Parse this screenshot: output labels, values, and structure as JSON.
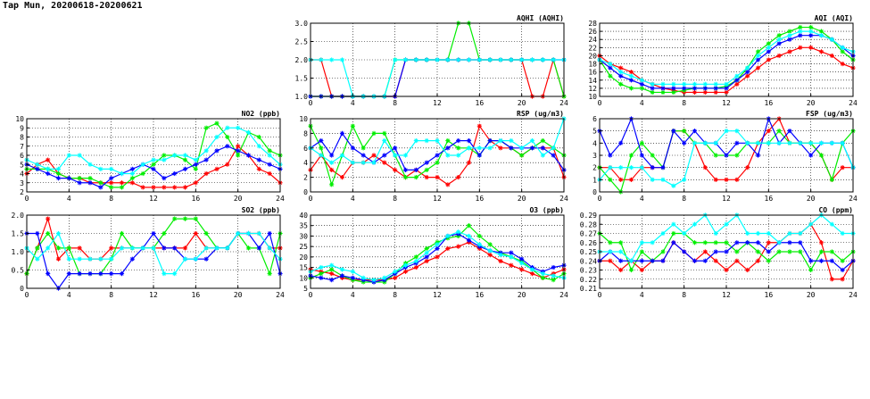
{
  "page": {
    "title": "Tap Mun, 20200618-20200621"
  },
  "series_colors": {
    "s1": "#ff0000",
    "s2": "#00ee00",
    "s3": "#0000ff",
    "s4": "#00ffff"
  },
  "chart_data": [
    {
      "id": "aqhi",
      "type": "line",
      "title": "AQHI (AQHI)",
      "xlim": [
        0,
        24
      ],
      "xticks": [
        0,
        4,
        8,
        12,
        16,
        20,
        24
      ],
      "ylim": [
        1.0,
        3.0
      ],
      "yticks": [
        "1.0",
        "1.5",
        "2.0",
        "2.5",
        "3.0"
      ],
      "grid": true,
      "series": [
        {
          "color": "#ff0000",
          "values": [
            2,
            2,
            1,
            1,
            1,
            1,
            1,
            1,
            1,
            2,
            2,
            2,
            2,
            2,
            2,
            2,
            2,
            2,
            2,
            2,
            2,
            1,
            1,
            2,
            1
          ]
        },
        {
          "color": "#00ee00",
          "values": [
            1,
            1,
            1,
            1,
            1,
            1,
            1,
            1,
            2,
            2,
            2,
            2,
            2,
            2,
            3,
            3,
            2,
            2,
            2,
            2,
            2,
            2,
            2,
            2,
            1
          ]
        },
        {
          "color": "#0000ff",
          "values": [
            1,
            1,
            1,
            1,
            1,
            1,
            1,
            1,
            1,
            2,
            2,
            2,
            2,
            2,
            2,
            2,
            2,
            2,
            2,
            2,
            2,
            2,
            2,
            2,
            2
          ]
        },
        {
          "color": "#00ffff",
          "values": [
            2,
            2,
            2,
            2,
            1,
            1,
            1,
            1,
            2,
            2,
            2,
            2,
            2,
            2,
            2,
            2,
            2,
            2,
            2,
            2,
            2,
            2,
            2,
            2,
            2
          ]
        }
      ]
    },
    {
      "id": "aqi",
      "type": "line",
      "title": "AQI (AQI)",
      "xlim": [
        0,
        24
      ],
      "xticks": [
        0,
        4,
        8,
        12,
        16,
        20,
        24
      ],
      "ylim": [
        10,
        28
      ],
      "yticks": [
        "10",
        "12",
        "14",
        "16",
        "18",
        "20",
        "22",
        "24",
        "26",
        "28"
      ],
      "grid": true,
      "series": [
        {
          "color": "#ff0000",
          "values": [
            20,
            18,
            17,
            16,
            14,
            13,
            12,
            11.5,
            11,
            11,
            11,
            11,
            11,
            13,
            15,
            17,
            19,
            20,
            21,
            22,
            22,
            21,
            20,
            18,
            17
          ]
        },
        {
          "color": "#00ee00",
          "values": [
            19,
            15,
            13,
            12,
            12,
            11,
            11,
            11,
            11.5,
            12,
            12,
            12,
            12.5,
            14,
            17,
            21,
            23,
            25,
            26,
            27,
            27,
            26,
            24,
            21,
            19
          ]
        },
        {
          "color": "#0000ff",
          "values": [
            19,
            17,
            15,
            14,
            13,
            12,
            12,
            12,
            12,
            12,
            12,
            12,
            12,
            14,
            16,
            19,
            21,
            23,
            24,
            25,
            25,
            25,
            24,
            22,
            20
          ]
        },
        {
          "color": "#00ffff",
          "values": [
            19,
            18,
            16,
            15,
            14,
            13,
            13,
            13,
            13,
            13,
            13,
            13,
            13,
            15,
            17,
            20,
            22,
            24,
            25,
            26,
            26,
            25,
            24,
            22,
            21
          ]
        }
      ]
    },
    {
      "id": "no2",
      "type": "line",
      "title": "NO2 (ppb)",
      "xlim": [
        0,
        24
      ],
      "xticks": [
        0,
        4,
        8,
        12,
        16,
        20,
        24
      ],
      "ylim": [
        2,
        10
      ],
      "yticks": [
        "2",
        "3",
        "4",
        "5",
        "6",
        "7",
        "8",
        "9",
        "10"
      ],
      "grid": true,
      "series": [
        {
          "color": "#ff0000",
          "values": [
            4,
            5,
            5.5,
            4,
            3.5,
            3.5,
            3,
            3,
            3,
            3,
            3,
            2.5,
            2.5,
            2.5,
            2.5,
            2.5,
            3,
            4,
            4.5,
            5,
            7,
            6,
            4.5,
            4,
            3
          ]
        },
        {
          "color": "#00ee00",
          "values": [
            4.5,
            4.5,
            4.5,
            4,
            3.5,
            3.5,
            3.5,
            3,
            2.5,
            2.5,
            3.5,
            4,
            5,
            6,
            6,
            5.5,
            4.5,
            9,
            9.5,
            8,
            6,
            8.5,
            8,
            6.5,
            6
          ]
        },
        {
          "color": "#0000ff",
          "values": [
            5,
            4.5,
            4,
            3.5,
            3.5,
            3,
            3,
            2.5,
            3.5,
            4,
            4.5,
            5,
            4.5,
            3.5,
            4,
            4.5,
            5,
            5.5,
            6.5,
            7,
            6.5,
            6,
            5.5,
            5,
            4.5
          ]
        },
        {
          "color": "#00ffff",
          "values": [
            5.5,
            5,
            4.5,
            4.5,
            6,
            6,
            5,
            4.5,
            4.5,
            4,
            4,
            5,
            5.5,
            5.5,
            6,
            6,
            5.5,
            6.5,
            8,
            9,
            9,
            8.5,
            7,
            6,
            5
          ]
        }
      ]
    },
    {
      "id": "rsp",
      "type": "line",
      "title": "RSP (ug/m3)",
      "xlim": [
        0,
        24
      ],
      "xticks": [
        0,
        4,
        8,
        12,
        16,
        20,
        24
      ],
      "ylim": [
        0,
        10
      ],
      "yticks": [
        "0",
        "2",
        "4",
        "6",
        "8",
        "10"
      ],
      "grid": true,
      "series": [
        {
          "color": "#ff0000",
          "values": [
            3,
            5,
            3,
            2,
            4,
            4,
            5,
            4,
            3,
            2,
            3,
            2,
            2,
            1,
            2,
            4,
            9,
            7,
            6,
            6,
            5,
            6,
            6,
            6,
            2
          ]
        },
        {
          "color": "#00ee00",
          "values": [
            9,
            6,
            1,
            5,
            9,
            6,
            8,
            8,
            5,
            2,
            2,
            3,
            4,
            7,
            6,
            6,
            5,
            7,
            7,
            6,
            5,
            6,
            7,
            6,
            5
          ]
        },
        {
          "color": "#0000ff",
          "values": [
            6,
            7,
            5,
            8,
            6,
            5,
            4,
            5,
            6,
            3,
            3,
            4,
            5,
            6,
            7,
            7,
            5,
            7,
            7,
            6,
            6,
            6,
            6,
            5,
            3
          ]
        },
        {
          "color": "#00ffff",
          "values": [
            6,
            5,
            4,
            5,
            4,
            4,
            4,
            7,
            5,
            5,
            7,
            7,
            7,
            5,
            5,
            6,
            6,
            6,
            7,
            7,
            6,
            7,
            5,
            6,
            10
          ]
        }
      ]
    },
    {
      "id": "fsp",
      "type": "line",
      "title": "FSP (ug/m3)",
      "xlim": [
        0,
        24
      ],
      "xticks": [
        0,
        4,
        8,
        12,
        16,
        20,
        24
      ],
      "ylim": [
        0,
        6
      ],
      "yticks": [
        "0",
        "1",
        "2",
        "3",
        "4",
        "5",
        "6"
      ],
      "grid": true,
      "series": [
        {
          "color": "#ff0000",
          "values": [
            2,
            2,
            1,
            1,
            2,
            2,
            2,
            5,
            5,
            4,
            2,
            1,
            1,
            1,
            2,
            4,
            5,
            6,
            4,
            4,
            4,
            3,
            1,
            2,
            2
          ]
        },
        {
          "color": "#00ee00",
          "values": [
            2,
            1,
            0,
            3,
            4,
            3,
            2,
            5,
            5,
            4,
            4,
            3,
            3,
            3,
            4,
            4,
            4,
            5,
            4,
            4,
            4,
            3,
            1,
            4,
            5
          ]
        },
        {
          "color": "#0000ff",
          "values": [
            5,
            3,
            4,
            6,
            3,
            2,
            2,
            5,
            4,
            5,
            4,
            4,
            3,
            4,
            4,
            3,
            6,
            4,
            5,
            4,
            3,
            4,
            4,
            4,
            2
          ]
        },
        {
          "color": "#00ffff",
          "values": [
            1,
            2,
            2,
            2,
            2,
            1,
            1,
            0.5,
            1,
            4,
            4,
            4,
            5,
            5,
            4,
            4,
            4,
            4,
            4,
            4,
            4,
            4,
            4,
            4,
            2
          ]
        }
      ]
    },
    {
      "id": "so2",
      "type": "line",
      "title": "SO2 (ppb)",
      "xlim": [
        0,
        24
      ],
      "xticks": [
        0,
        4,
        8,
        12,
        16,
        20,
        24
      ],
      "ylim": [
        0,
        2.0
      ],
      "yticks": [
        "0",
        "0.5",
        "1.0",
        "1.5",
        "2.0"
      ],
      "grid": true,
      "series": [
        {
          "color": "#ff0000",
          "values": [
            0.4,
            1.1,
            1.9,
            0.8,
            1.1,
            1.1,
            0.8,
            0.8,
            1.1,
            1.1,
            1.1,
            1.1,
            1.1,
            1.1,
            1.1,
            1.1,
            1.5,
            1.1,
            1.1,
            1.1,
            1.5,
            1.5,
            1.5,
            1.1,
            1.1
          ]
        },
        {
          "color": "#00ee00",
          "values": [
            0.4,
            1.1,
            1.5,
            1.1,
            1.1,
            0.4,
            0.4,
            0.4,
            0.8,
            1.5,
            1.1,
            1.1,
            1.1,
            1.5,
            1.9,
            1.9,
            1.9,
            1.5,
            1.1,
            1.1,
            1.5,
            1.1,
            1.1,
            0.4,
            1.5
          ]
        },
        {
          "color": "#0000ff",
          "values": [
            1.5,
            1.5,
            0.4,
            0,
            0.4,
            0.4,
            0.4,
            0.4,
            0.4,
            0.4,
            0.8,
            1.1,
            1.5,
            1.1,
            1.1,
            0.8,
            0.8,
            0.8,
            1.1,
            1.1,
            1.5,
            1.5,
            1.1,
            1.5,
            0.4
          ]
        },
        {
          "color": "#00ffff",
          "values": [
            1.1,
            0.8,
            1.1,
            1.5,
            0.8,
            0.8,
            0.8,
            0.8,
            0.8,
            1.1,
            1.1,
            1.1,
            1.1,
            0.4,
            0.4,
            0.8,
            0.8,
            1.1,
            1.1,
            1.1,
            1.5,
            1.5,
            1.5,
            1.1,
            0.8
          ]
        }
      ]
    },
    {
      "id": "o3",
      "type": "line",
      "title": "O3 (ppb)",
      "xlim": [
        0,
        24
      ],
      "xticks": [
        0,
        4,
        8,
        12,
        16,
        20,
        24
      ],
      "ylim": [
        5,
        40
      ],
      "yticks": [
        "5",
        "10",
        "15",
        "20",
        "25",
        "30",
        "35",
        "40"
      ],
      "grid": true,
      "series": [
        {
          "color": "#ff0000",
          "values": [
            14,
            13,
            12,
            10,
            9,
            9,
            9,
            9,
            10,
            13,
            15,
            18,
            20,
            24,
            25,
            27,
            24,
            21,
            18,
            16,
            14,
            12,
            10,
            12,
            14
          ]
        },
        {
          "color": "#00ee00",
          "values": [
            10,
            12,
            14,
            11,
            9,
            8,
            8,
            8,
            12,
            17,
            20,
            24,
            27,
            29,
            30,
            35,
            30,
            26,
            22,
            20,
            18,
            14,
            10,
            9,
            12
          ]
        },
        {
          "color": "#0000ff",
          "values": [
            11,
            10,
            9,
            11,
            10,
            9,
            8,
            9,
            12,
            15,
            17,
            20,
            24,
            30,
            31,
            28,
            25,
            23,
            22,
            22,
            19,
            15,
            13,
            15,
            16
          ]
        },
        {
          "color": "#00ffff",
          "values": [
            13,
            15,
            16,
            14,
            13,
            10,
            9,
            10,
            13,
            16,
            18,
            22,
            26,
            30,
            32,
            30,
            26,
            23,
            21,
            20,
            17,
            14,
            12,
            11,
            10
          ]
        }
      ]
    },
    {
      "id": "co",
      "type": "line",
      "title": "CO (ppm)",
      "xlim": [
        0,
        24
      ],
      "xticks": [
        0,
        4,
        8,
        12,
        16,
        20,
        24
      ],
      "ylim": [
        0.21,
        0.29
      ],
      "yticks": [
        "0.21",
        "0.22",
        "0.23",
        "0.24",
        "0.25",
        "0.26",
        "0.27",
        "0.28",
        "0.29"
      ],
      "grid": true,
      "series": [
        {
          "color": "#ff0000",
          "values": [
            0.24,
            0.24,
            0.23,
            0.24,
            0.23,
            0.24,
            0.24,
            0.26,
            0.25,
            0.24,
            0.25,
            0.24,
            0.23,
            0.24,
            0.23,
            0.24,
            0.26,
            0.26,
            0.27,
            0.27,
            0.28,
            0.26,
            0.22,
            0.22,
            0.24
          ]
        },
        {
          "color": "#00ee00",
          "values": [
            0.27,
            0.26,
            0.26,
            0.23,
            0.25,
            0.24,
            0.25,
            0.27,
            0.27,
            0.26,
            0.26,
            0.26,
            0.26,
            0.25,
            0.26,
            0.25,
            0.24,
            0.25,
            0.25,
            0.25,
            0.23,
            0.25,
            0.25,
            0.24,
            0.25
          ]
        },
        {
          "color": "#0000ff",
          "values": [
            0.24,
            0.25,
            0.24,
            0.24,
            0.24,
            0.24,
            0.24,
            0.26,
            0.25,
            0.24,
            0.24,
            0.25,
            0.25,
            0.26,
            0.26,
            0.26,
            0.25,
            0.26,
            0.26,
            0.26,
            0.24,
            0.24,
            0.24,
            0.23,
            0.24
          ]
        },
        {
          "color": "#00ffff",
          "values": [
            0.25,
            0.25,
            0.25,
            0.24,
            0.26,
            0.26,
            0.27,
            0.28,
            0.27,
            0.28,
            0.29,
            0.27,
            0.28,
            0.29,
            0.27,
            0.27,
            0.27,
            0.26,
            0.27,
            0.27,
            0.28,
            0.29,
            0.28,
            0.27,
            0.27
          ]
        }
      ]
    }
  ]
}
